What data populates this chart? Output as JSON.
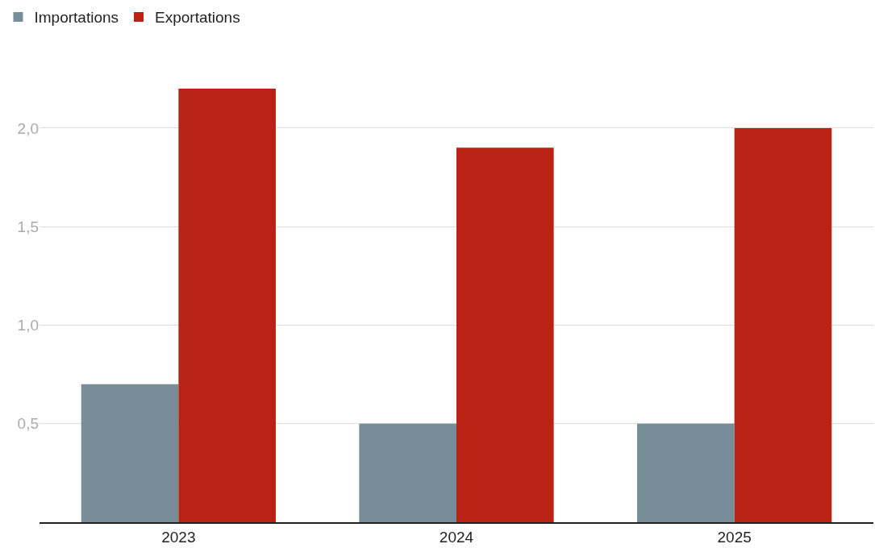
{
  "chart_data": {
    "type": "bar",
    "categories": [
      "2023",
      "2024",
      "2025"
    ],
    "series": [
      {
        "name": "Importations",
        "color": "#778e99",
        "values": [
          0.7,
          0.5,
          0.5
        ]
      },
      {
        "name": "Exportations",
        "color": "#b92215",
        "values": [
          2.2,
          1.9,
          2.0
        ]
      }
    ],
    "ylim": [
      0,
      2.2
    ],
    "yticks": [
      {
        "value": 0.5,
        "label": "0,5"
      },
      {
        "value": 1.0,
        "label": "1,0"
      },
      {
        "value": 1.5,
        "label": "1,5"
      },
      {
        "value": 2.0,
        "label": "2,0"
      }
    ],
    "grid": "y",
    "legend": "top left"
  }
}
